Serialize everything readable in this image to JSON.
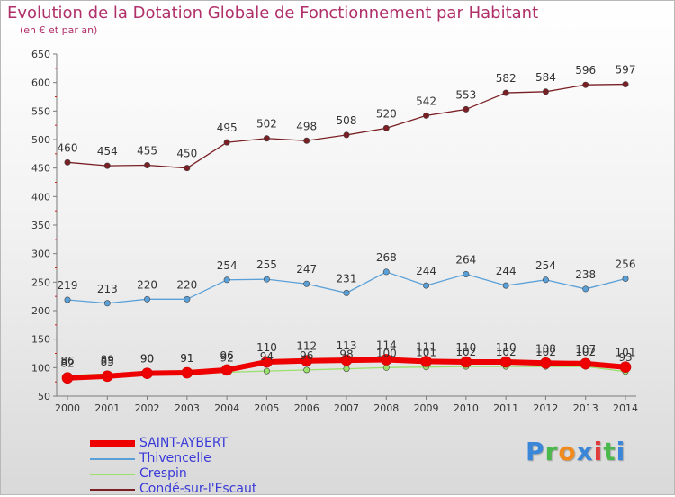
{
  "title": "Evolution de la Dotation Globale de Fonctionnement par Habitant",
  "subtitle": "(en € et par an)",
  "brand": {
    "letters": [
      "P",
      "r",
      "o",
      "x",
      "i",
      "t",
      "i"
    ],
    "colors": [
      "#3a86d8",
      "#4bb84b",
      "#f08a1c",
      "#3a86d8",
      "#e23b3b",
      "#4bb84b",
      "#3a86d8"
    ]
  },
  "chart_data": {
    "type": "line",
    "x": [
      "2000",
      "2001",
      "2002",
      "2003",
      "2004",
      "2005",
      "2006",
      "2007",
      "2008",
      "2009",
      "2010",
      "2011",
      "2012",
      "2013",
      "2014"
    ],
    "ylim": [
      50,
      650
    ],
    "yticks": [
      "50",
      "100",
      "150",
      "200",
      "250",
      "300",
      "350",
      "400",
      "450",
      "500",
      "550",
      "600",
      "650"
    ],
    "grid": false,
    "legend_position": "bottom-left",
    "series": [
      {
        "name": "SAINT-AYBERT",
        "color": "#ee0000",
        "values": [
          82,
          85,
          90,
          91,
          96,
          110,
          112,
          113,
          114,
          111,
          110,
          110,
          108,
          107,
          101
        ],
        "labels": [
          "82",
          "85",
          "90",
          "91",
          "96",
          "110",
          "112",
          "113",
          "114",
          "111",
          "110",
          "110",
          "108",
          "107",
          "101"
        ]
      },
      {
        "name": "Thivencelle",
        "color": "#5aa0d8",
        "values": [
          219,
          213,
          220,
          220,
          254,
          255,
          247,
          231,
          268,
          244,
          264,
          244,
          254,
          238,
          256
        ],
        "labels": [
          "219",
          "213",
          "220",
          "220",
          "254",
          "255",
          "247",
          "231",
          "268",
          "244",
          "264",
          "244",
          "254",
          "238",
          "256"
        ]
      },
      {
        "name": "Crespin",
        "color": "#9ae06a",
        "values": [
          86,
          89,
          90,
          91,
          92,
          94,
          96,
          98,
          100,
          101,
          102,
          102,
          102,
          102,
          93
        ],
        "labels": [
          "86",
          "89",
          "90",
          "91",
          "92",
          "94",
          "96",
          "98",
          "100",
          "101",
          "102",
          "102",
          "102",
          "102",
          "93"
        ]
      },
      {
        "name": "Condé-sur-l'Escaut",
        "color": "#7a1f24",
        "values": [
          460,
          454,
          455,
          450,
          495,
          502,
          498,
          508,
          520,
          542,
          553,
          582,
          584,
          596,
          597
        ],
        "labels": [
          "460",
          "454",
          "455",
          "450",
          "495",
          "502",
          "498",
          "508",
          "520",
          "542",
          "553",
          "582",
          "584",
          "596",
          "597"
        ]
      }
    ]
  }
}
